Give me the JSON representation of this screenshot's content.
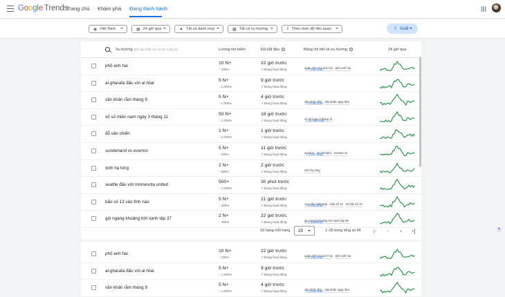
{
  "header": {
    "logo_google": "Google",
    "logo_trends": "Trends",
    "nav": [
      "Trang chủ",
      "Khám phá",
      "Đang thịnh hành"
    ]
  },
  "filters": {
    "country": "Việt Nam",
    "time": "24 giờ qua",
    "category": "Tất cả danh mục",
    "trend_type": "Tất cả xu hướng",
    "sort": "Theo mức độ liên quan",
    "export": "Xuất"
  },
  "table": {
    "col_trend": "Xu hướng",
    "col_trend_note": "(Đã cập nhật vào 10:29, 4 thg 11)",
    "col_volume": "Lượng tìm kiếm",
    "col_started": "Đã bắt đầu",
    "col_breakdown": "Bảng chi tiết về xu hướng",
    "col_chart": "24 giờ qua",
    "status_label": "Đang hoạt động",
    "rows": [
      {
        "name": "phố anh hai",
        "volume": "10 N+",
        "change": "↑ 100%",
        "started": "22 giờ trước",
        "tags": [
          "quán phở của anh hai",
          "phở anh hai"
        ],
        "more": "+ 7 mục khác"
      },
      {
        "name": "al-gharafa đấu với al hilal",
        "volume": "5 N+",
        "change": "↑ 1.000%",
        "started": "9 giờ trước",
        "tags": [],
        "more": ""
      },
      {
        "name": "văn khấn rằm tháng 9",
        "volume": "5 N+",
        "change": "↑ 1.000%",
        "started": "4 giờ trước",
        "tags": [
          "văn khấn rằm",
          "văn khấn ngày rằm"
        ],
        "more": "+ 5 mục khác"
      },
      {
        "name": "xổ số miền nam ngày 3 tháng 11",
        "volume": "50 N+",
        "change": "↑ 1.000%",
        "started": "18 giờ trước",
        "tags": [
          "xổ số ngày 3 tháng 11"
        ],
        "more": "+ 26 mục khác"
      },
      {
        "name": "đỗ văn chiến",
        "volume": "1 N+",
        "change": "↑ 1.000%",
        "started": "1 giờ trước",
        "tags": [],
        "more": ""
      },
      {
        "name": "sunderland vs everton",
        "volume": "5 N+",
        "change": "↑ 100%",
        "started": "11 giờ trước",
        "tags": [
          "everton",
          "sunderland",
          "everton vs"
        ],
        "more": "+ 2 mục khác"
      },
      {
        "name": "vịnh hạ long",
        "volume": "2 N+",
        "change": "↑ 500%",
        "started": "2 giờ trước",
        "tags": [
          "vịnh hạ long"
        ],
        "more": ""
      },
      {
        "name": "seattle đấu với minnesota united",
        "volume": "500+",
        "change": "↑ 1.000%",
        "started": "30 phút trước",
        "tags": [],
        "more": ""
      },
      {
        "name": "bão số 13 vào tỉnh nào",
        "volume": "5 N+",
        "change": "↑ 200%",
        "started": "21 giờ trước",
        "tags": [
          "cơn bão kalmaegi",
          "bão số 13",
          "tin bão số 13"
        ],
        "more": "+ 9 mục khác"
      },
      {
        "name": "gió ngang khoảng trời xanh tập 37",
        "volume": "2 N+",
        "change": "↑ 400%",
        "started": "22 giờ trước",
        "tags": [
          "gió ngang khoảng trời xanh tập 38"
        ],
        "more": "+ 1 mục khác"
      }
    ],
    "rows2": [
      {
        "name": "phố anh hai",
        "volume": "10 N+",
        "change": "↑ 100%",
        "started": "22 giờ trước",
        "tags": [
          "quán phở của anh hai",
          "phở anh hai"
        ],
        "more": "+ 7 mục khác"
      },
      {
        "name": "al-gharafa đấu với al hilal",
        "volume": "5 N+",
        "change": "↑ 1.000%",
        "started": "9 giờ trước",
        "tags": [],
        "more": ""
      },
      {
        "name": "văn khấn rằm tháng 9",
        "volume": "5 N+",
        "change": "↑ 1.000%",
        "started": "4 giờ trước",
        "tags": [
          "văn khấn rằm",
          "văn khấn ngày rằm"
        ],
        "more": "+ 5 mục khác"
      }
    ]
  },
  "pagination": {
    "rows_label": "Số hàng mỗi trang",
    "rows_value": "25",
    "range": "1–25 trong tổng số 49"
  },
  "icons": [
    "menu-icon",
    "apps-icon",
    "search-icon",
    "info-icon",
    "trending-up-icon",
    "chevron-left-icon",
    "chevron-right-icon",
    "first-page-icon",
    "last-page-icon",
    "gemini-icon"
  ]
}
